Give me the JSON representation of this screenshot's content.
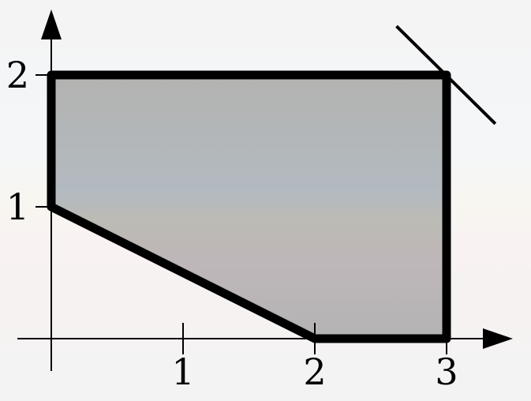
{
  "axes": {
    "x_ticks": [
      {
        "value": 1,
        "label": "1"
      },
      {
        "value": 2,
        "label": "2"
      },
      {
        "value": 3,
        "label": "3"
      }
    ],
    "y_ticks": [
      {
        "value": 1,
        "label": "1"
      },
      {
        "value": 2,
        "label": "2"
      }
    ]
  },
  "region": {
    "vertices": [
      [
        0,
        1
      ],
      [
        0,
        2
      ],
      [
        3,
        2
      ],
      [
        3,
        0
      ],
      [
        2,
        0
      ]
    ],
    "fill_color": "#b4b6b8",
    "edge_color": "#000000"
  },
  "tangent_line": {
    "points": [
      [
        2.62,
        2.37
      ],
      [
        3.37,
        1.63
      ]
    ]
  }
}
